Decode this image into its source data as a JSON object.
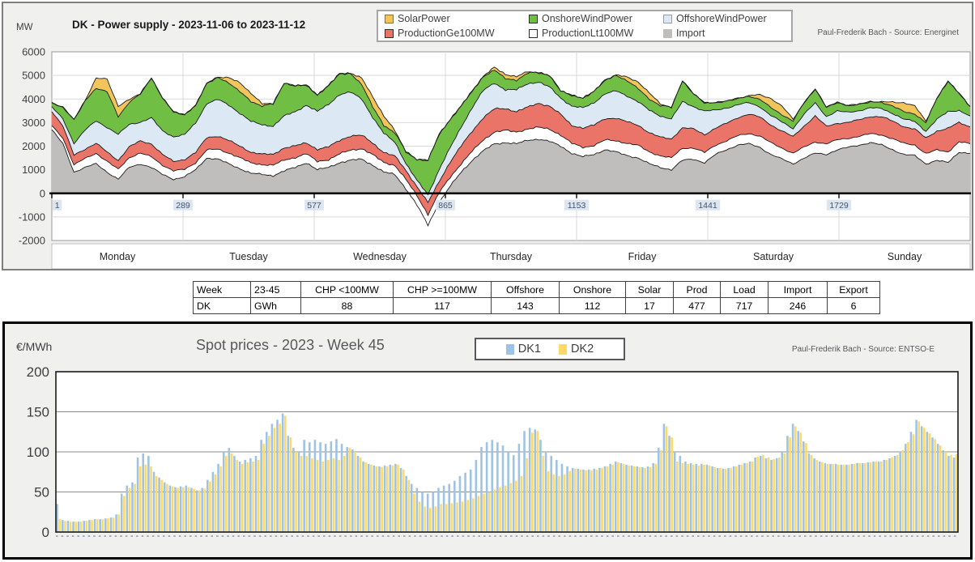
{
  "top_chart": {
    "title": "DK - Power supply - 2023-11-06 to 2023-11-12",
    "unit_label": "MW",
    "source": "Paul-Frederik Bach - Source: Energinet",
    "legend": [
      {
        "label": "SolarPower",
        "color": "#f2c55c",
        "border": "#8f7023"
      },
      {
        "label": "OnshoreWindPower",
        "color": "#71be44",
        "border": "#2d2d2d"
      },
      {
        "label": "OffshoreWindPower",
        "color": "#dce9f5",
        "border": "#8f9fb3"
      },
      {
        "label": "ProductionGe100MW",
        "color": "#e97467",
        "border": "#2d2d2d"
      },
      {
        "label": "ProductionLt100MW",
        "color": "#ffffff",
        "border": "#2d2d2d"
      },
      {
        "label": "Import",
        "color": "#bfbebd",
        "border": "#bfbebd"
      }
    ]
  },
  "summary_table": {
    "header": [
      "Week",
      "23-45",
      "CHP <100MW",
      "CHP >=100MW",
      "Offshore",
      "Onshore",
      "Solar",
      "Prod",
      "Load",
      "Import",
      "Export"
    ],
    "row": [
      "DK",
      "GWh",
      "88",
      "117",
      "143",
      "112",
      "17",
      "477",
      "717",
      "246",
      "6"
    ]
  },
  "bottom_chart": {
    "title": "Spot prices - 2023 - Week 45",
    "unit_label": "€/MWh",
    "source": "Paul-Frederik Bach - Source: ENTSO-E",
    "legend": [
      {
        "label": "DK1",
        "color": "#9dc3e6",
        "border": "#9dc3e6"
      },
      {
        "label": "DK2",
        "color": "#ffd966",
        "border": "#ffd966"
      }
    ]
  },
  "chart_data": [
    {
      "type": "area",
      "title": "DK - Power supply - 2023-11-06 to 2023-11-12",
      "ylabel": "MW",
      "ylim": [
        -2000,
        6000
      ],
      "yticks": [
        6000,
        5000,
        4000,
        3000,
        2000,
        1000,
        0,
        -1000,
        -2000
      ],
      "x_ticks": [
        1,
        289,
        577,
        865,
        1153,
        1441,
        1729
      ],
      "day_labels": [
        "Monday",
        "Tuesday",
        "Wednesday",
        "Thursday",
        "Friday",
        "Saturday",
        "Sunday"
      ],
      "x_step_hours": 2,
      "legend_position": "top",
      "grid": true,
      "series": [
        {
          "name": "Import",
          "color": "#bfbebd",
          "values": [
            2700,
            2100,
            900,
            1100,
            1250,
            900,
            600,
            1100,
            1250,
            1100,
            800,
            600,
            700,
            1000,
            1500,
            1450,
            1250,
            1050,
            850,
            800,
            750,
            950,
            1100,
            1300,
            1000,
            1100,
            1300,
            1400,
            1450,
            1200,
            900,
            800,
            200,
            -500,
            -1350,
            -400,
            300,
            900,
            1400,
            1800,
            2100,
            2150,
            2100,
            2250,
            2300,
            2200,
            2000,
            1700,
            1550,
            1650,
            1850,
            1750,
            1600,
            1500,
            1250,
            1100,
            1000,
            1400,
            1450,
            1300,
            1650,
            1850,
            2050,
            2100,
            1950,
            1650,
            1450,
            1250,
            1500,
            1700,
            1650,
            1850,
            1950,
            2050,
            2150,
            2050,
            1850,
            1650,
            1600,
            1250,
            1400,
            1300,
            1750,
            1700
          ]
        },
        {
          "name": "ProductionLt100MW",
          "color": "#ffffff",
          "values": [
            170,
            250,
            300,
            380,
            450,
            450,
            420,
            420,
            450,
            450,
            400,
            350,
            320,
            300,
            340,
            420,
            460,
            460,
            440,
            420,
            440,
            460,
            420,
            380,
            350,
            330,
            370,
            430,
            450,
            440,
            410,
            390,
            390,
            400,
            450,
            420,
            380,
            360,
            390,
            460,
            500,
            520,
            500,
            480,
            500,
            520,
            470,
            420,
            400,
            380,
            410,
            480,
            520,
            530,
            510,
            490,
            500,
            520,
            470,
            430,
            400,
            380,
            390,
            440,
            480,
            490,
            470,
            450,
            460,
            480,
            450,
            420,
            390,
            370,
            380,
            430,
            460,
            470,
            450,
            430,
            440,
            460,
            430,
            400
          ]
        },
        {
          "name": "ProductionGe100MW",
          "color": "#e97467",
          "values": [
            620,
            500,
            420,
            400,
            420,
            400,
            380,
            450,
            520,
            550,
            450,
            400,
            420,
            430,
            520,
            560,
            530,
            490,
            460,
            440,
            460,
            520,
            490,
            460,
            520,
            540,
            570,
            610,
            560,
            490,
            430,
            390,
            380,
            390,
            500,
            480,
            650,
            750,
            850,
            950,
            980,
            920,
            870,
            920,
            1020,
            980,
            870,
            760,
            820,
            860,
            910,
            960,
            910,
            860,
            810,
            790,
            810,
            860,
            810,
            760,
            720,
            740,
            770,
            820,
            800,
            760,
            720,
            700,
            900,
            1100,
            740,
            700,
            670,
            700,
            730,
            770,
            750,
            710,
            680,
            660,
            800,
            1000,
            820,
            720
          ]
        },
        {
          "name": "OffshoreWindPower",
          "color": "#dce9f5",
          "values": [
            175,
            300,
            500,
            800,
            950,
            1050,
            1100,
            950,
            800,
            1100,
            1000,
            1050,
            1050,
            1250,
            1450,
            1550,
            1500,
            1400,
            1300,
            1250,
            1200,
            1350,
            1450,
            1600,
            1600,
            1800,
            1950,
            1850,
            1550,
            1100,
            800,
            600,
            300,
            250,
            350,
            500,
            600,
            800,
            1000,
            1150,
            1100,
            800,
            920,
            1000,
            900,
            800,
            700,
            820,
            850,
            950,
            1050,
            1150,
            1100,
            1000,
            950,
            900,
            850,
            1100,
            950,
            1000,
            750,
            650,
            550,
            480,
            440,
            400,
            380,
            350,
            500,
            550,
            420,
            520,
            420,
            390,
            370,
            340,
            330,
            320,
            310,
            300,
            500,
            700,
            520,
            460
          ]
        },
        {
          "name": "OnshoreWindPower",
          "color": "#71be44",
          "values": [
            175,
            500,
            1000,
            1250,
            1400,
            1500,
            750,
            950,
            1200,
            1700,
            1400,
            1050,
            850,
            750,
            850,
            950,
            950,
            900,
            850,
            800,
            950,
            1400,
            1100,
            850,
            700,
            800,
            880,
            800,
            620,
            430,
            350,
            400,
            500,
            900,
            1450,
            1500,
            1200,
            900,
            700,
            600,
            560,
            460,
            410,
            460,
            400,
            500,
            300,
            460,
            420,
            480,
            580,
            680,
            640,
            540,
            490,
            440,
            490,
            900,
            540,
            350,
            330,
            290,
            270,
            290,
            310,
            330,
            320,
            310,
            500,
            600,
            390,
            370,
            290,
            270,
            260,
            280,
            300,
            320,
            330,
            350,
            900,
            1300,
            720,
            400
          ]
        },
        {
          "name": "SolarPower",
          "color": "#f2c55c",
          "values": [
            0,
            0,
            0,
            0,
            400,
            550,
            450,
            100,
            0,
            0,
            0,
            0,
            0,
            0,
            0,
            0,
            200,
            400,
            350,
            80,
            0,
            0,
            0,
            0,
            0,
            0,
            0,
            0,
            250,
            450,
            400,
            80,
            0,
            0,
            0,
            0,
            0,
            0,
            0,
            0,
            100,
            200,
            150,
            40,
            0,
            0,
            0,
            0,
            0,
            0,
            0,
            0,
            150,
            300,
            250,
            60,
            0,
            0,
            0,
            0,
            0,
            0,
            0,
            0,
            200,
            400,
            350,
            80,
            0,
            0,
            0,
            0,
            0,
            0,
            0,
            0,
            180,
            380,
            330,
            70,
            0,
            0,
            0,
            0
          ]
        }
      ]
    },
    {
      "type": "bar",
      "title": "Spot prices - 2023 - Week 45",
      "ylabel": "€/MWh",
      "ylim": [
        0,
        200
      ],
      "yticks": [
        200,
        150,
        100,
        50,
        0
      ],
      "x_unit": "hour of week (Mon-Sun)",
      "grid": true,
      "legend_position": "top",
      "series": [
        {
          "name": "DK1",
          "color": "#9dc3e6",
          "values": [
            35,
            15,
            14,
            13,
            13,
            14,
            15,
            16,
            16,
            17,
            18,
            22,
            48,
            58,
            62,
            93,
            98,
            95,
            75,
            68,
            62,
            58,
            56,
            57,
            58,
            55,
            52,
            55,
            65,
            75,
            85,
            100,
            105,
            95,
            88,
            90,
            92,
            95,
            115,
            125,
            135,
            140,
            148,
            120,
            105,
            100,
            115,
            112,
            115,
            112,
            110,
            113,
            116,
            110,
            106,
            103,
            95,
            88,
            85,
            83,
            82,
            83,
            84,
            85,
            80,
            70,
            60,
            55,
            50,
            48,
            50,
            55,
            58,
            60,
            64,
            70,
            74,
            78,
            90,
            106,
            112,
            115,
            112,
            108,
            100,
            96,
            110,
            126,
            130,
            128,
            115,
            100,
            95,
            90,
            85,
            82,
            80,
            79,
            78,
            78,
            79,
            80,
            82,
            85,
            88,
            86,
            84,
            83,
            82,
            81,
            82,
            86,
            105,
            135,
            120,
            100,
            95,
            88,
            86,
            85,
            85,
            84,
            82,
            80,
            79,
            80,
            82,
            84,
            86,
            88,
            93,
            95,
            92,
            90,
            92,
            100,
            120,
            135,
            126,
            113,
            98,
            92,
            88,
            86,
            85,
            85,
            84,
            84,
            85,
            86,
            86,
            87,
            88,
            88,
            90,
            92,
            95,
            100,
            110,
            125,
            140,
            132,
            125,
            118,
            110,
            102,
            95,
            93
          ]
        },
        {
          "name": "DK2",
          "color": "#ffd966",
          "values": [
            16,
            14,
            13,
            13,
            13,
            14,
            15,
            16,
            16,
            17,
            18,
            22,
            45,
            55,
            60,
            82,
            84,
            82,
            70,
            65,
            60,
            57,
            55,
            56,
            56,
            54,
            52,
            54,
            63,
            72,
            82,
            95,
            98,
            90,
            85,
            87,
            88,
            90,
            110,
            120,
            130,
            135,
            145,
            118,
            100,
            95,
            95,
            92,
            90,
            88,
            90,
            92,
            90,
            95,
            105,
            100,
            93,
            87,
            84,
            82,
            81,
            82,
            83,
            84,
            78,
            65,
            48,
            38,
            32,
            30,
            32,
            35,
            35,
            36,
            37,
            38,
            40,
            42,
            45,
            48,
            50,
            53,
            56,
            58,
            61,
            64,
            70,
            92,
            124,
            126,
            95,
            76,
            72,
            70,
            72,
            76,
            79,
            78,
            77,
            77,
            78,
            80,
            82,
            84,
            87,
            85,
            83,
            82,
            81,
            80,
            81,
            85,
            102,
            132,
            118,
            88,
            86,
            85,
            84,
            83,
            84,
            83,
            81,
            80,
            79,
            80,
            82,
            84,
            86,
            88,
            94,
            96,
            93,
            91,
            93,
            98,
            118,
            132,
            124,
            111,
            96,
            90,
            87,
            85,
            85,
            84,
            84,
            84,
            85,
            86,
            86,
            87,
            88,
            88,
            90,
            93,
            96,
            102,
            112,
            122,
            138,
            130,
            123,
            116,
            108,
            100,
            96,
            97
          ]
        }
      ]
    }
  ]
}
